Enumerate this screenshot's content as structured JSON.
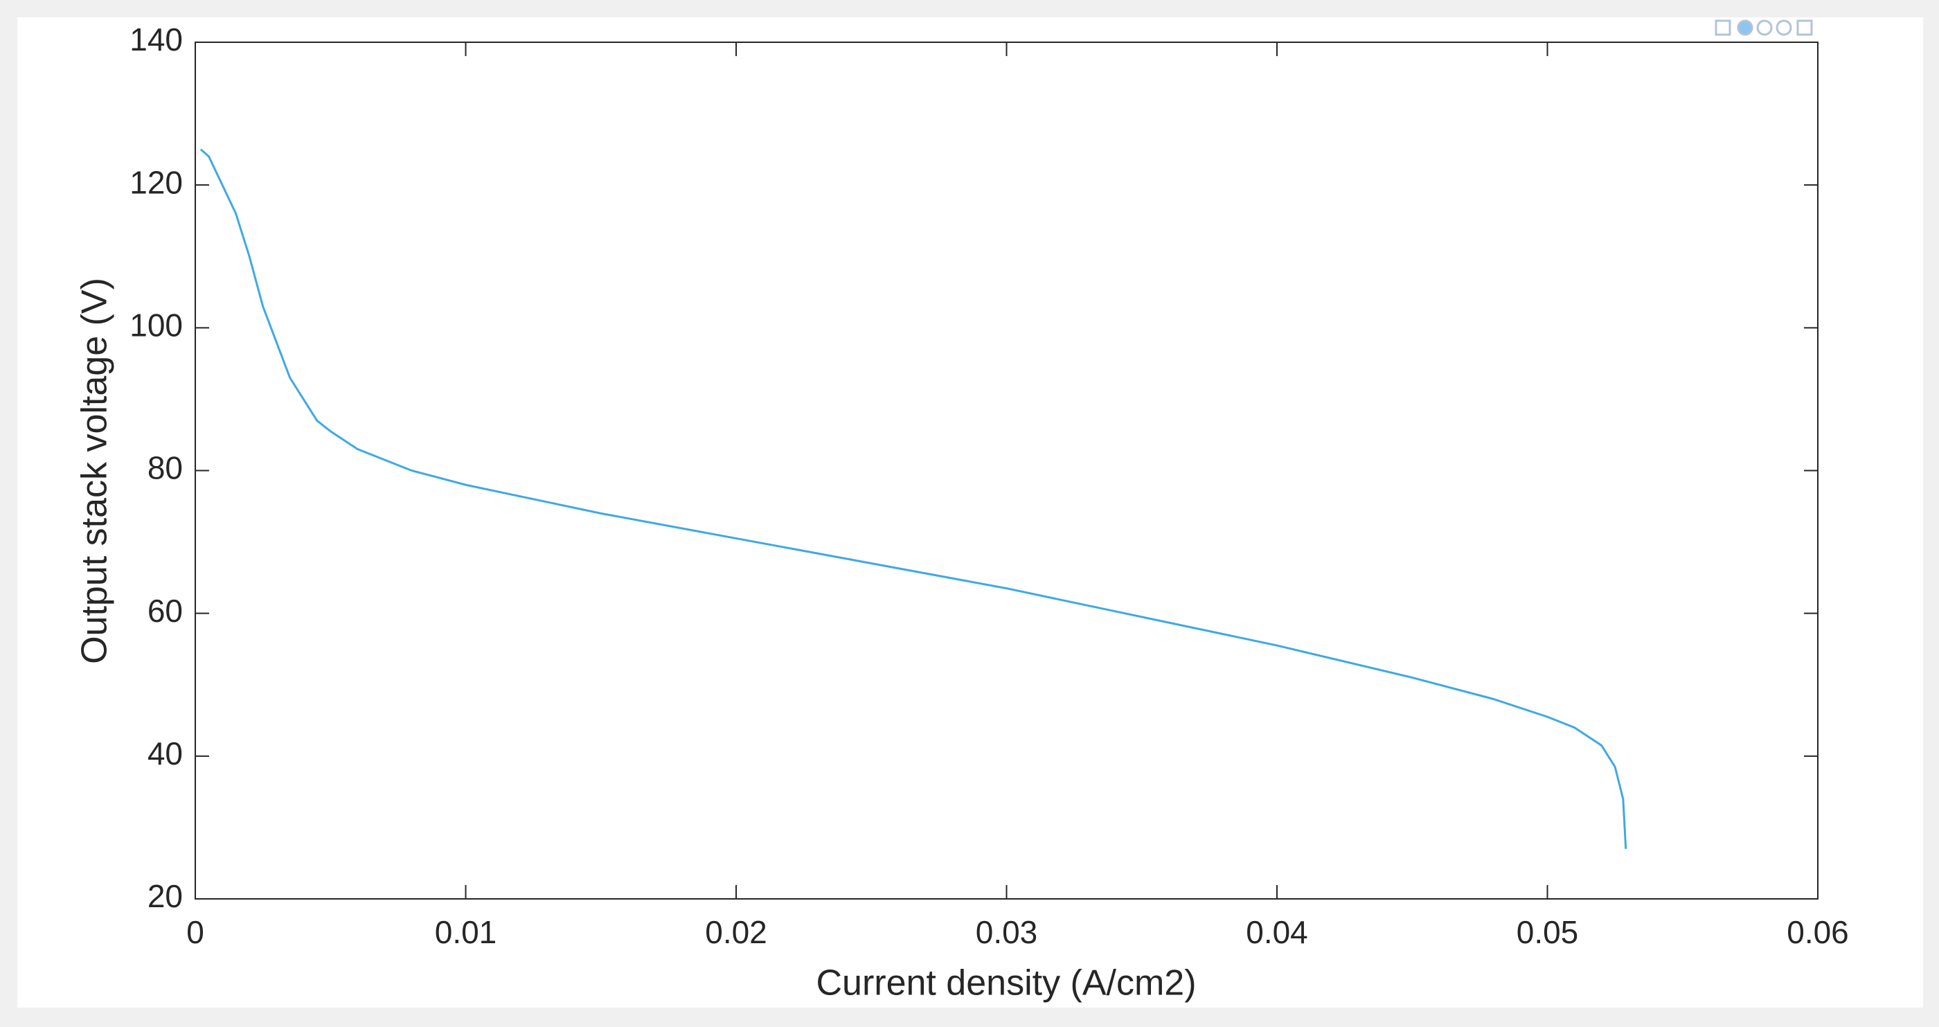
{
  "chart_data": {
    "type": "line",
    "x_label": "Current density (A/cm2)",
    "y_label": "Output stack voltage (V)",
    "x": [
      0.0002,
      0.0005,
      0.001,
      0.0015,
      0.002,
      0.0025,
      0.003,
      0.0035,
      0.004,
      0.0045,
      0.005,
      0.006,
      0.007,
      0.008,
      0.01,
      0.015,
      0.02,
      0.025,
      0.03,
      0.035,
      0.04,
      0.045,
      0.048,
      0.05,
      0.051,
      0.052,
      0.0525,
      0.0528,
      0.0529
    ],
    "values": [
      125,
      124,
      120,
      116,
      110,
      103,
      98,
      93,
      90,
      87,
      85.5,
      83,
      81.5,
      80,
      78,
      74,
      70.5,
      67,
      63.5,
      59.5,
      55.5,
      51,
      48,
      45.5,
      44,
      41.5,
      38.5,
      34,
      27
    ],
    "color": "#3fa9e0",
    "xlim": [
      0,
      0.06
    ],
    "xticks": [
      0,
      0.01,
      0.02,
      0.03,
      0.04,
      0.05,
      0.06
    ],
    "ylim": [
      20,
      140
    ],
    "yticks": [
      20,
      40,
      60,
      80,
      100,
      120,
      140
    ],
    "grid": false
  }
}
